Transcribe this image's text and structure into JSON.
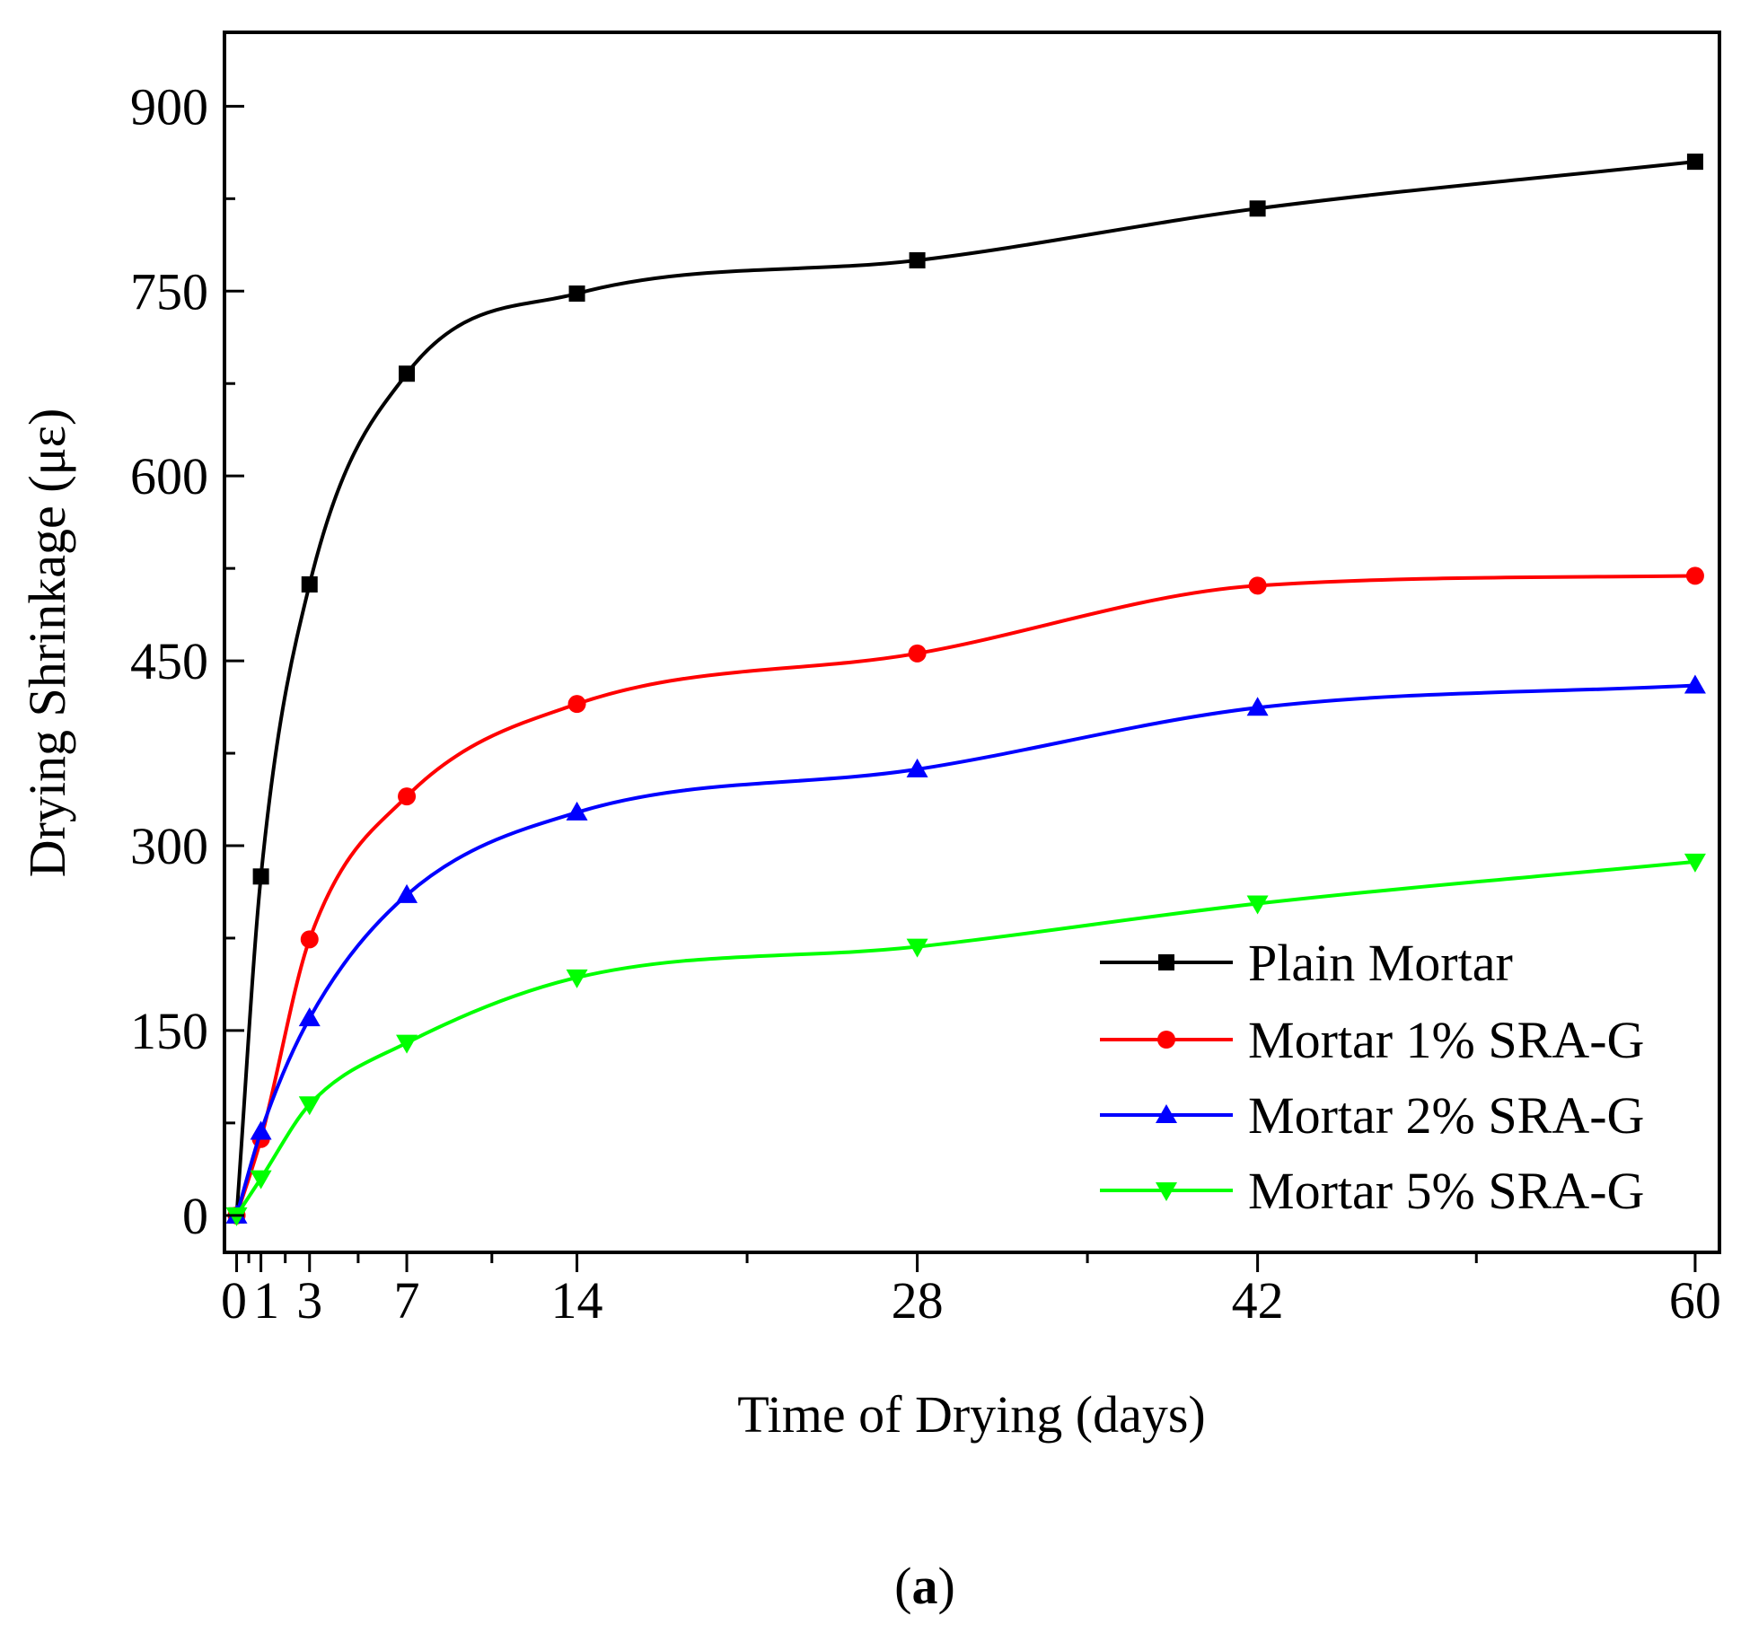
{
  "chart_data": {
    "type": "line",
    "title": "",
    "xlabel": "Time of Drying (days)",
    "ylabel": "Drying Shrinkage (με)",
    "xlim": [
      -0.5,
      61
    ],
    "ylim": [
      -30,
      960
    ],
    "xticks": [
      0,
      1,
      3,
      7,
      14,
      28,
      42,
      60
    ],
    "yticks": [
      0,
      150,
      300,
      450,
      600,
      750,
      900
    ],
    "legend_position": "bottom-right",
    "caption": {
      "open": "(",
      "label": "a",
      "close": ")"
    },
    "series": [
      {
        "name": "Plain Mortar",
        "color": "#000000",
        "marker": "square",
        "x": [
          0,
          1,
          3,
          7,
          14,
          28,
          42,
          60
        ],
        "y": [
          0,
          275,
          512,
          683,
          748,
          775,
          817,
          855
        ]
      },
      {
        "name": "Mortar 1% SRA-G",
        "color": "#ff0000",
        "marker": "circle",
        "x": [
          0,
          1,
          3,
          7,
          14,
          28,
          42,
          60
        ],
        "y": [
          0,
          62,
          224,
          340,
          415,
          456,
          511,
          519
        ]
      },
      {
        "name": "Mortar 2% SRA-G",
        "color": "#0000ff",
        "marker": "triangle-up",
        "x": [
          0,
          1,
          3,
          7,
          14,
          28,
          42,
          60
        ],
        "y": [
          0,
          68,
          160,
          260,
          327,
          362,
          412,
          430
        ]
      },
      {
        "name": "Mortar 5% SRA-G",
        "color": "#00ff00",
        "marker": "triangle-down",
        "x": [
          0,
          1,
          3,
          7,
          14,
          28,
          42,
          60
        ],
        "y": [
          0,
          30,
          90,
          140,
          193,
          218,
          253,
          287
        ]
      }
    ]
  }
}
